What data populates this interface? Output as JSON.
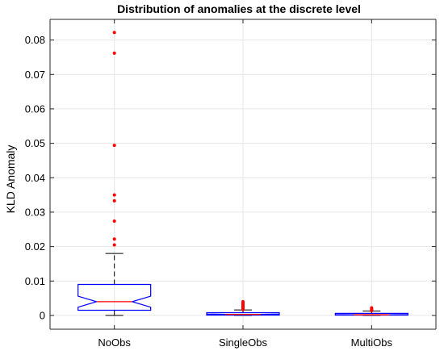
{
  "colors": {
    "box": "#0000ff",
    "median": "#ff0000",
    "outlier": "#ff0000",
    "whisker": "#000000",
    "grid": "#e6e6e6",
    "axis": "#262626"
  },
  "chart_data": {
    "type": "box",
    "title": "Distribution of anomalies at the discrete level",
    "xlabel": "",
    "ylabel": "KLD Anomaly",
    "ylim": [
      -0.004,
      0.086
    ],
    "yticks": [
      0,
      0.01,
      0.02,
      0.03,
      0.04,
      0.05,
      0.06,
      0.07,
      0.08
    ],
    "ytick_labels": [
      "0",
      "0.01",
      "0.02",
      "0.03",
      "0.04",
      "0.05",
      "0.06",
      "0.07",
      "0.08"
    ],
    "grid": true,
    "notched": true,
    "categories": [
      "NoObs",
      "SingleObs",
      "MultiObs"
    ],
    "boxes": [
      {
        "name": "NoObs",
        "whisker_low": 0.0,
        "q1": 0.0015,
        "median": 0.004,
        "q3": 0.009,
        "whisker_high": 0.018,
        "notch_low": 0.0024,
        "notch_high": 0.0056,
        "outliers": [
          0.0822,
          0.0762,
          0.0494,
          0.035,
          0.0333,
          0.0274,
          0.0222,
          0.0205
        ]
      },
      {
        "name": "SingleObs",
        "whisker_low": 0.0,
        "q1": 0.0001,
        "median": 0.0003,
        "q3": 0.0008,
        "whisker_high": 0.0016,
        "notch_low": 0.0002,
        "notch_high": 0.0004,
        "outliers": [
          0.004,
          0.0036,
          0.0032,
          0.0028,
          0.0024,
          0.0021,
          0.0019,
          0.0017
        ]
      },
      {
        "name": "MultiObs",
        "whisker_low": 0.0,
        "q1": 0.0001,
        "median": 0.0002,
        "q3": 0.0006,
        "whisker_high": 0.0013,
        "notch_low": 0.00015,
        "notch_high": 0.00025,
        "outliers": [
          0.0022,
          0.0019,
          0.0016,
          0.0014
        ]
      }
    ]
  }
}
